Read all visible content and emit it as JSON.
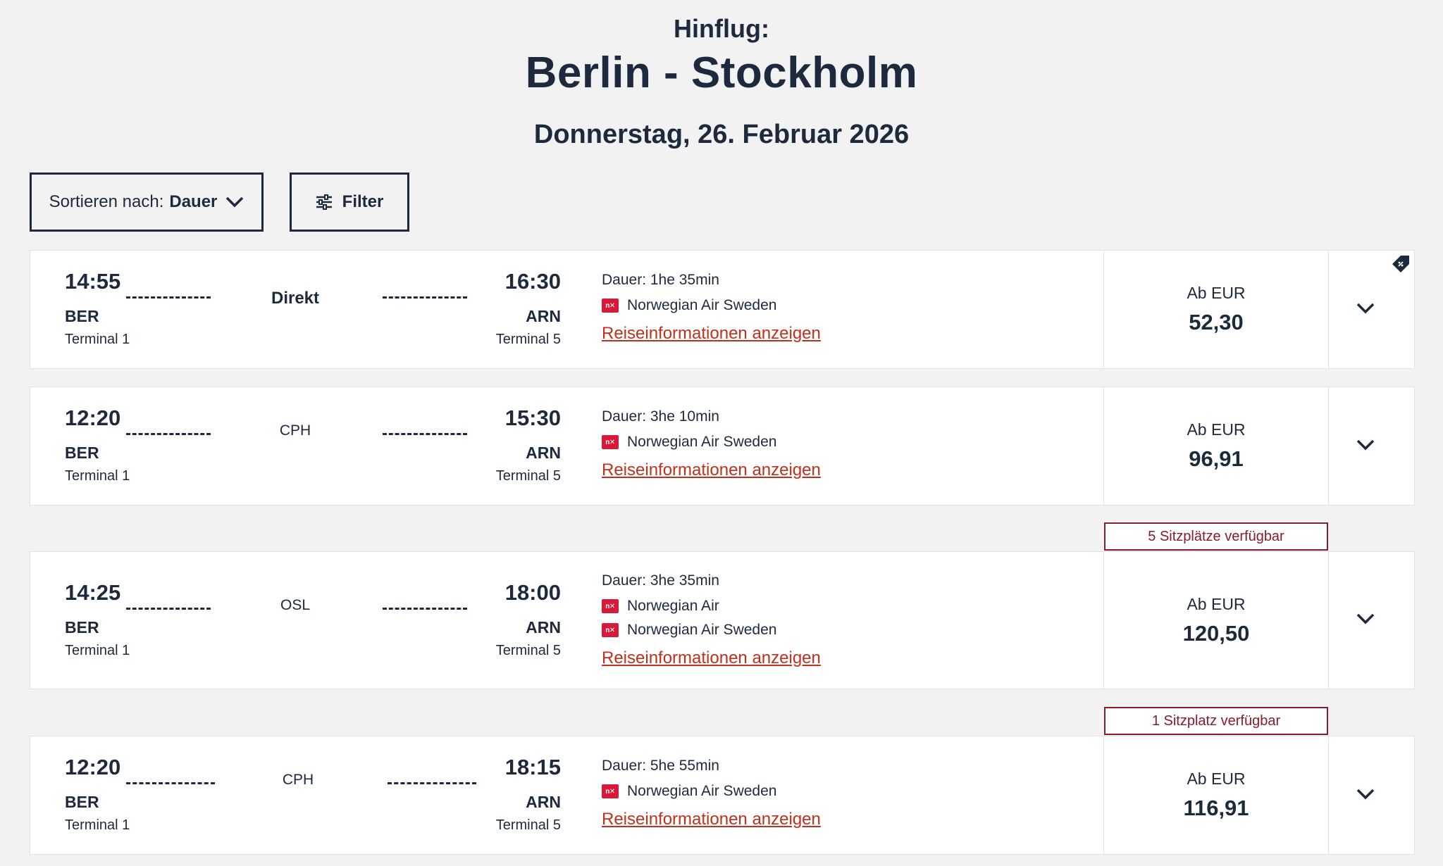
{
  "header": {
    "subtitle": "Hinflug:",
    "route": "Berlin - Stockholm",
    "date": "Donnerstag, 26. Februar 2026"
  },
  "toolbar": {
    "sort_prefix": "Sortieren nach:",
    "sort_value": "Dauer",
    "filter_label": "Filter"
  },
  "flights": [
    {
      "dep_time": "14:55",
      "dep_code": "BER",
      "dep_terminal": "Terminal 1",
      "stop": "Direkt",
      "arr_time": "16:30",
      "arr_code": "ARN",
      "arr_terminal": "Terminal 5",
      "duration": "Dauer: 1he 35min",
      "airlines": [
        "Norwegian Air Sweden"
      ],
      "link": "Reiseinformationen anzeigen",
      "price_label": "Ab EUR",
      "price": "52,30"
    },
    {
      "dep_time": "12:20",
      "dep_code": "BER",
      "dep_terminal": "Terminal 1",
      "stop": "CPH",
      "arr_time": "15:30",
      "arr_code": "ARN",
      "arr_terminal": "Terminal 5",
      "duration": "Dauer: 3he 10min",
      "airlines": [
        "Norwegian Air Sweden"
      ],
      "link": "Reiseinformationen anzeigen",
      "price_label": "Ab EUR",
      "price": "96,91"
    },
    {
      "seat_notice": "5 Sitzplätze verfügbar",
      "dep_time": "14:25",
      "dep_code": "BER",
      "dep_terminal": "Terminal 1",
      "stop": "OSL",
      "arr_time": "18:00",
      "arr_code": "ARN",
      "arr_terminal": "Terminal 5",
      "duration": "Dauer: 3he 35min",
      "airlines": [
        "Norwegian Air",
        "Norwegian Air Sweden"
      ],
      "link": "Reiseinformationen anzeigen",
      "price_label": "Ab EUR",
      "price": "120,50"
    },
    {
      "seat_notice": "1 Sitzplatz verfügbar",
      "dep_time": "12:20",
      "dep_code": "BER",
      "dep_terminal": "Terminal 1",
      "stop": "CPH",
      "arr_time": "18:15",
      "arr_code": "ARN",
      "arr_terminal": "Terminal 5",
      "duration": "Dauer: 5he 55min",
      "airlines": [
        "Norwegian Air Sweden"
      ],
      "link": "Reiseinformationen anzeigen",
      "price_label": "Ab EUR",
      "price": "116,91"
    }
  ],
  "airline_logo_text": "n✕",
  "colors": {
    "accent_link": "#c0301c",
    "badge": "#8a1b2c",
    "text": "#1d2a3d",
    "logo": "#d81939"
  }
}
